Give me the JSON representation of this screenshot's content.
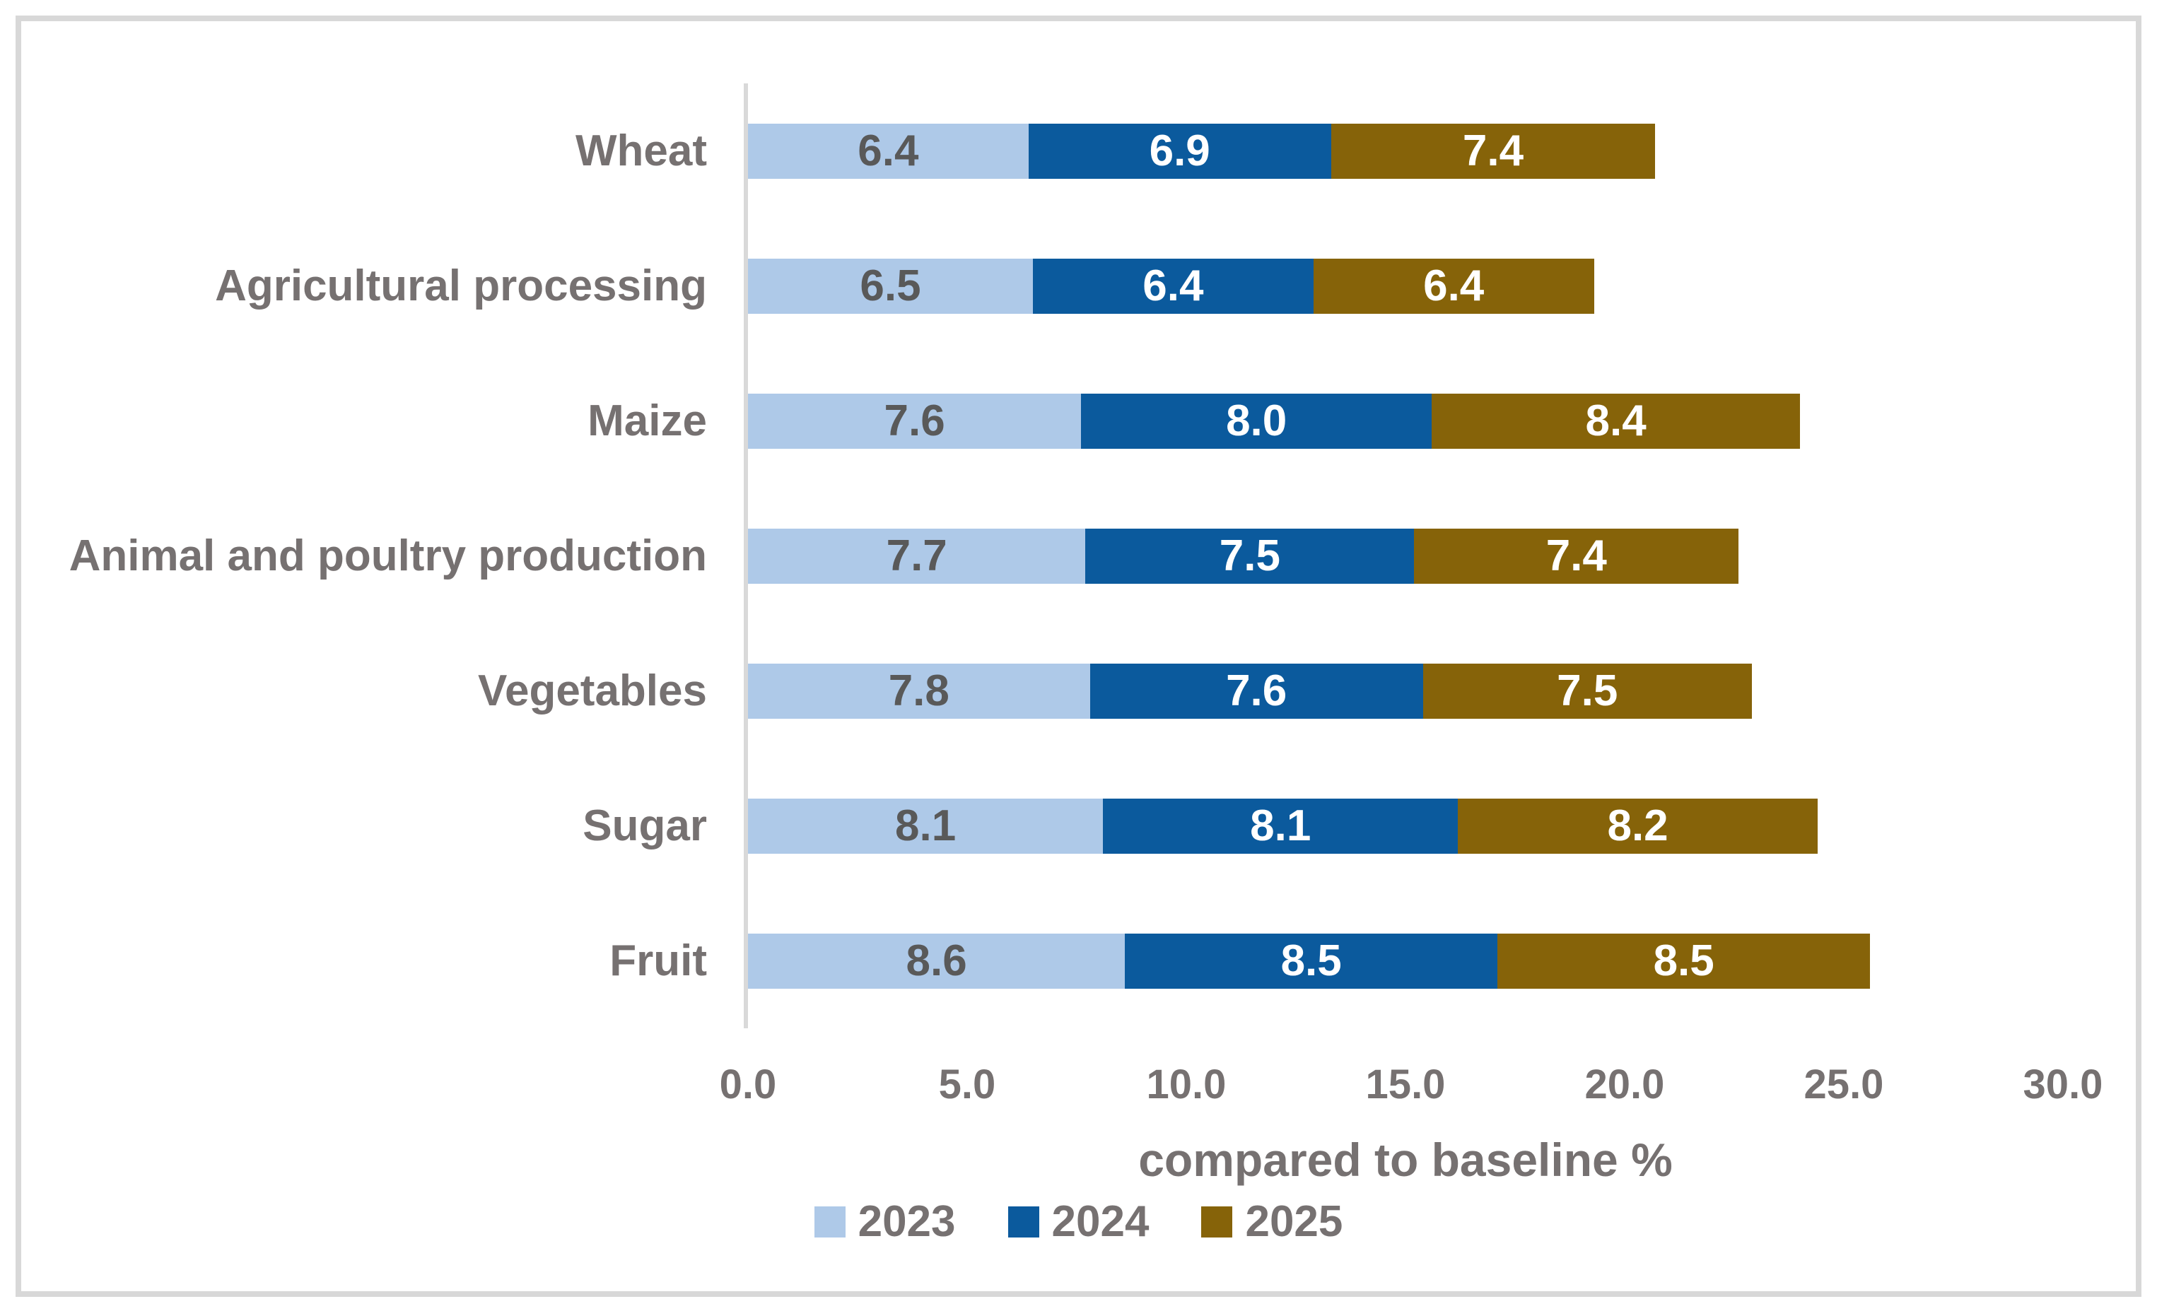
{
  "chart_data": {
    "type": "bar",
    "orientation": "horizontal",
    "stacked": true,
    "title": "",
    "xlabel": "compared to baseline %",
    "ylabel": "",
    "xlim": [
      0,
      30
    ],
    "x_ticks": [
      "0.0",
      "5.0",
      "10.0",
      "15.0",
      "20.0",
      "25.0",
      "30.0"
    ],
    "grid": false,
    "legend_position": "bottom-center",
    "categories": [
      "Wheat",
      "Agricultural processing",
      "Maize",
      "Animal and poultry production",
      "Vegetables",
      "Sugar",
      "Fruit"
    ],
    "series": [
      {
        "name": "2023",
        "color": "#aec9e8",
        "label_color": "#595959",
        "values": [
          6.4,
          6.5,
          7.6,
          7.7,
          7.8,
          8.1,
          8.6
        ]
      },
      {
        "name": "2024",
        "color": "#0b5a9d",
        "label_color": "#ffffff",
        "values": [
          6.9,
          6.4,
          8.0,
          7.5,
          7.6,
          8.1,
          8.5
        ]
      },
      {
        "name": "2025",
        "color": "#866309",
        "label_color": "#ffffff",
        "values": [
          7.4,
          6.4,
          8.4,
          7.4,
          7.5,
          8.2,
          8.5
        ]
      }
    ]
  },
  "colors": {
    "text": "#767171",
    "axis_line": "#d9d9d9",
    "frame_border": "#d8d8d8",
    "background": "#ffffff"
  }
}
